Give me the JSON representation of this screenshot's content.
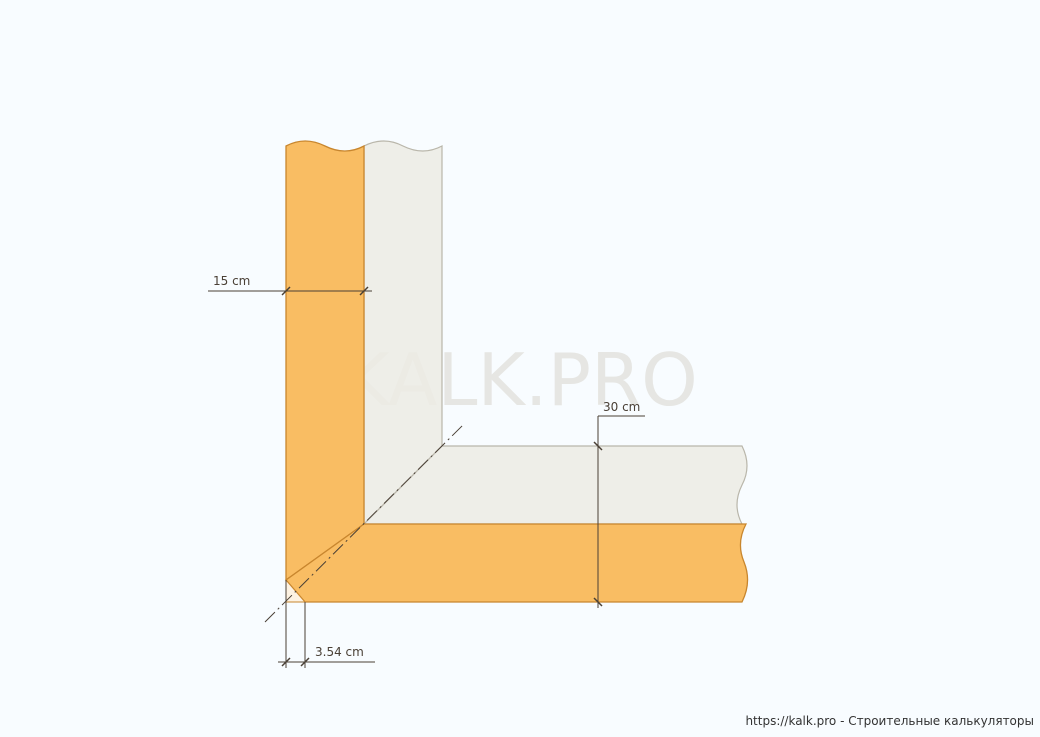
{
  "diagram": {
    "watermark": "KALK.PRO",
    "footer": "https://kalk.pro - Строительные калькуляторы",
    "dimensions": {
      "wall_thickness": "15 cm",
      "cladding_thickness": "30 cm",
      "corner_offset": "3.54 cm"
    },
    "colors": {
      "board": "#f9bd63",
      "board_edge": "#c8862e",
      "cladding": "#ecebe4",
      "cladding_edge": "#b9b6aa",
      "dimension_line": "#4a4036",
      "background": "#f8fcff"
    }
  }
}
